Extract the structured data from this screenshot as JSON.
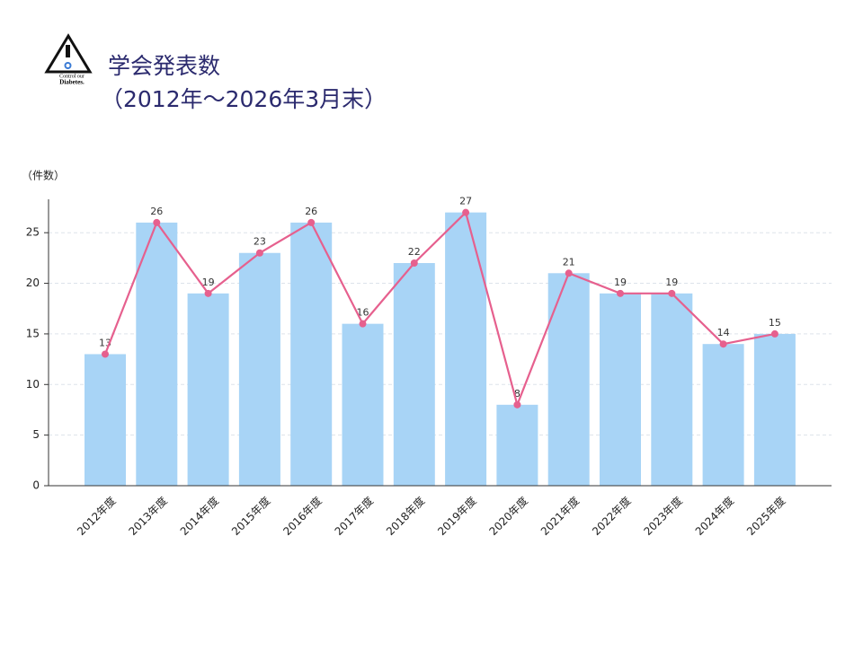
{
  "logo": {
    "lines": [
      "Control our",
      "Diabetes."
    ]
  },
  "chart_data": {
    "type": "bar",
    "title": "学会発表数",
    "subtitle": "（2012年～2026年3月末）",
    "y_label": "（件数）",
    "categories": [
      "2012年度",
      "2013年度",
      "2014年度",
      "2015年度",
      "2016年度",
      "2017年度",
      "2018年度",
      "2019年度",
      "2020年度",
      "2021年度",
      "2022年度",
      "2023年度",
      "2024年度",
      "2025年度"
    ],
    "series": [
      {
        "type": "bar",
        "color": "#a8d4f6",
        "values": [
          13,
          26,
          19,
          23,
          26,
          16,
          22,
          27,
          8,
          21,
          19,
          19,
          14,
          15
        ]
      },
      {
        "type": "line",
        "color": "#e6608e",
        "values": [
          13,
          26,
          19,
          23,
          26,
          16,
          22,
          27,
          8,
          21,
          19,
          19,
          14,
          15
        ]
      }
    ],
    "ylim": [
      0,
      28.3
    ],
    "yticks": [
      0,
      5,
      10,
      15,
      20,
      25
    ],
    "grid": true
  }
}
